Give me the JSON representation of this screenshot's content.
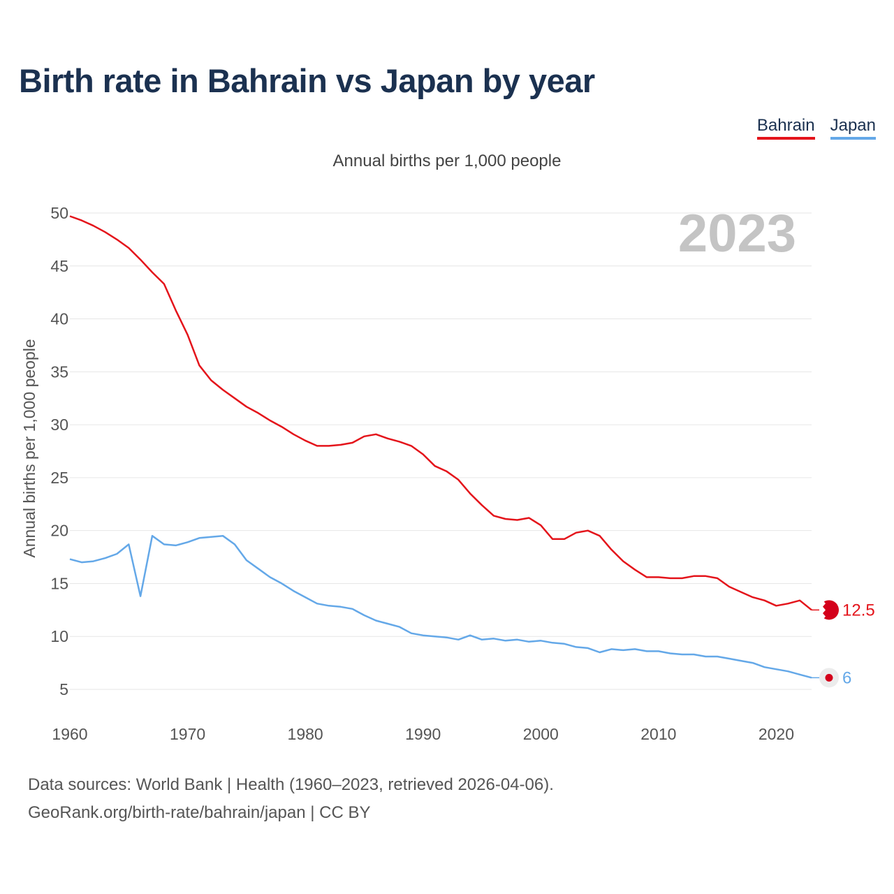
{
  "header": {
    "title": "Birth rate in Bahrain vs Japan by year",
    "subtitle": "Annual births per 1,000 people"
  },
  "chart_data": {
    "type": "line",
    "title": "Birth rate in Bahrain vs Japan by year",
    "subtitle": "Annual births per 1,000 people",
    "xlabel": "",
    "ylabel": "Annual births per 1,000 people",
    "xlim": [
      1960,
      2023
    ],
    "ylim": [
      5,
      50
    ],
    "yticks": [
      5,
      10,
      15,
      20,
      25,
      30,
      35,
      40,
      45,
      50
    ],
    "xticks": [
      1960,
      1970,
      1980,
      1990,
      2000,
      2010,
      2020
    ],
    "year_label": "2023",
    "grid": true,
    "legend_position": "top-right",
    "x": [
      1960,
      1961,
      1962,
      1963,
      1964,
      1965,
      1966,
      1967,
      1968,
      1969,
      1970,
      1971,
      1972,
      1973,
      1974,
      1975,
      1976,
      1977,
      1978,
      1979,
      1980,
      1981,
      1982,
      1983,
      1984,
      1985,
      1986,
      1987,
      1988,
      1989,
      1990,
      1991,
      1992,
      1993,
      1994,
      1995,
      1996,
      1997,
      1998,
      1999,
      2000,
      2001,
      2002,
      2003,
      2004,
      2005,
      2006,
      2007,
      2008,
      2009,
      2010,
      2011,
      2012,
      2013,
      2014,
      2015,
      2016,
      2017,
      2018,
      2019,
      2020,
      2021,
      2022,
      2023
    ],
    "series": [
      {
        "name": "Bahrain",
        "color": "#e4141b",
        "end_label": "12.5",
        "values": [
          49.7,
          49.3,
          48.8,
          48.2,
          47.5,
          46.7,
          45.6,
          44.4,
          43.3,
          40.8,
          38.5,
          35.6,
          34.2,
          33.3,
          32.5,
          31.7,
          31.1,
          30.4,
          29.8,
          29.1,
          28.5,
          28.0,
          28.0,
          28.1,
          28.3,
          28.9,
          29.1,
          28.7,
          28.4,
          28.0,
          27.2,
          26.1,
          25.6,
          24.8,
          23.5,
          22.4,
          21.4,
          21.1,
          21.0,
          21.2,
          20.5,
          19.2,
          19.2,
          19.8,
          20.0,
          19.5,
          18.2,
          17.1,
          16.3,
          15.6,
          15.6,
          15.5,
          15.5,
          15.7,
          15.7,
          15.5,
          14.7,
          14.2,
          13.7,
          13.4,
          12.9,
          13.1,
          13.4,
          12.5
        ]
      },
      {
        "name": "Japan",
        "color": "#64a8e8",
        "end_label": "6",
        "values": [
          17.3,
          17.0,
          17.1,
          17.4,
          17.8,
          18.7,
          13.8,
          19.5,
          18.7,
          18.6,
          18.9,
          19.3,
          19.4,
          19.5,
          18.7,
          17.2,
          16.4,
          15.6,
          15.0,
          14.3,
          13.7,
          13.1,
          12.9,
          12.8,
          12.6,
          12.0,
          11.5,
          11.2,
          10.9,
          10.3,
          10.1,
          10.0,
          9.9,
          9.7,
          10.1,
          9.7,
          9.8,
          9.6,
          9.7,
          9.5,
          9.6,
          9.4,
          9.3,
          9.0,
          8.9,
          8.5,
          8.8,
          8.7,
          8.8,
          8.6,
          8.6,
          8.4,
          8.3,
          8.3,
          8.1,
          8.1,
          7.9,
          7.7,
          7.5,
          7.1,
          6.9,
          6.7,
          6.4,
          6.1
        ]
      }
    ]
  },
  "legend": {
    "items": [
      {
        "label": "Bahrain",
        "color": "#e4141b"
      },
      {
        "label": "Japan",
        "color": "#64a8e8"
      }
    ]
  },
  "footer": {
    "source_line1": "Data sources: World Bank | Health (1960–2023, retrieved 2026-04-06).",
    "source_line2": "GeoRank.org/birth-rate/bahrain/japan | CC BY"
  }
}
